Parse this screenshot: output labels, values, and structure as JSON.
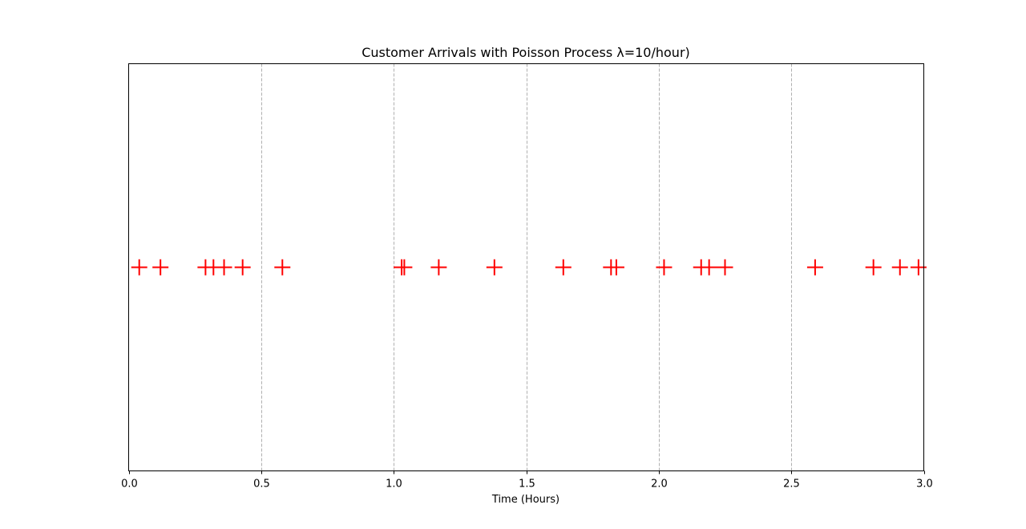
{
  "chart_data": {
    "type": "scatter",
    "title": "Customer Arrivals with Poisson Process λ=10/hour)",
    "xlabel": "Time (Hours)",
    "ylabel": "",
    "xlim": [
      0.0,
      3.0
    ],
    "ylim": [
      -1,
      1
    ],
    "x_ticks": [
      "0.0",
      "0.5",
      "1.0",
      "1.5",
      "2.0",
      "2.5",
      "3.0"
    ],
    "x_tick_values": [
      0.0,
      0.5,
      1.0,
      1.5,
      2.0,
      2.5,
      3.0
    ],
    "y_ticks_visible": false,
    "grid": "vertical dashed lines on x axis",
    "marker": "plus",
    "marker_color": "#ff0000",
    "grid_color": "#b0b0b0",
    "series": [
      {
        "x": [
          0.04,
          0.12,
          0.29,
          0.32,
          0.36,
          0.43,
          0.58,
          1.03,
          1.04,
          1.17,
          1.38,
          1.64,
          1.82,
          1.84,
          2.02,
          2.16,
          2.19,
          2.25,
          2.59,
          2.81,
          2.91,
          2.98
        ],
        "y": [
          0,
          0,
          0,
          0,
          0,
          0,
          0,
          0,
          0,
          0,
          0,
          0,
          0,
          0,
          0,
          0,
          0,
          0,
          0,
          0,
          0,
          0
        ]
      }
    ]
  }
}
